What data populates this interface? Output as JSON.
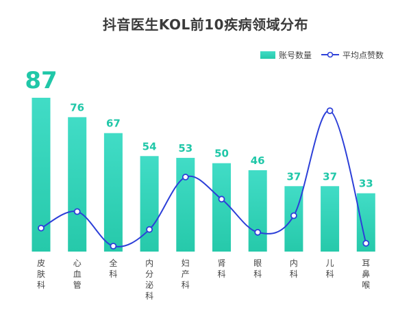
{
  "chart_data": {
    "type": "bar",
    "title": "抖音医生KOL前10疾病领域分布",
    "categories": [
      "皮肤科",
      "心血管",
      "全科",
      "内分泌科",
      "妇产科",
      "肾科",
      "眼科",
      "内科",
      "儿科",
      "耳鼻喉"
    ],
    "series": [
      {
        "name": "账号数量",
        "type": "bar",
        "values": [
          87,
          76,
          67,
          54,
          53,
          50,
          46,
          37,
          37,
          33
        ]
      },
      {
        "name": "平均点赞数",
        "type": "line",
        "values": [
          0.15,
          0.27,
          0.02,
          0.14,
          0.52,
          0.36,
          0.12,
          0.24,
          1.0,
          0.04
        ]
      }
    ],
    "xlabel": "",
    "ylabel": "",
    "ylim": [
      0,
      100
    ],
    "legend_position": "top-right",
    "grid": false,
    "colors": {
      "bar_top": "#41dcc6",
      "bar_bottom": "#26c9aa",
      "label": "#20c7a8",
      "line": "#2c3fd8"
    }
  }
}
